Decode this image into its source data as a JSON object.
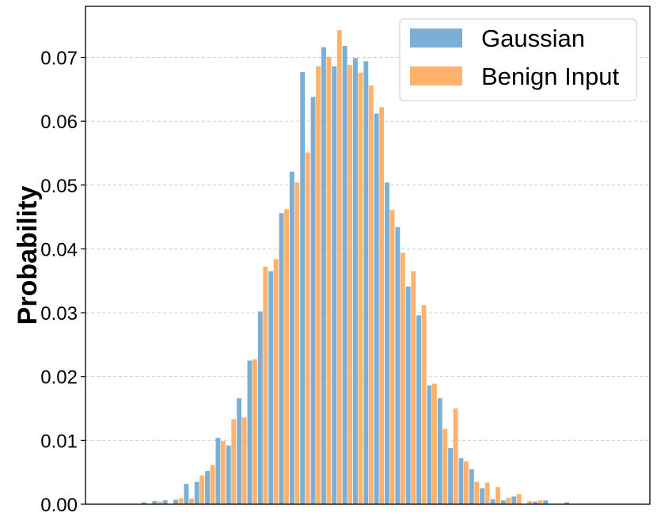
{
  "chart_data": {
    "type": "bar",
    "title": "",
    "xlabel": "",
    "ylabel": "Probability",
    "ylim": [
      0,
      0.078
    ],
    "yticks": [
      0.0,
      0.01,
      0.02,
      0.03,
      0.04,
      0.05,
      0.06,
      0.07
    ],
    "ytick_labels": [
      "0.00",
      "0.01",
      "0.02",
      "0.03",
      "0.04",
      "0.05",
      "0.06",
      "0.07"
    ],
    "grid": "horizontal dashed",
    "legend_position": "top-right",
    "series": [
      {
        "name": "Gaussian",
        "color": "#7BAFD4",
        "values": [
          0.0003,
          0.0005,
          0.0006,
          0.0007,
          0.0032,
          0.0035,
          0.0052,
          0.0104,
          0.0092,
          0.0166,
          0.0225,
          0.0302,
          0.0365,
          0.0456,
          0.0521,
          0.0677,
          0.0638,
          0.0716,
          0.0686,
          0.0718,
          0.0699,
          0.0694,
          0.0612,
          0.0504,
          0.0434,
          0.0341,
          0.0296,
          0.0186,
          0.0166,
          0.0088,
          0.0072,
          0.0055,
          0.0025,
          0.0008,
          0.0006,
          0.0012,
          0.0,
          0.0004,
          0.0006,
          0.0,
          0.0003
        ]
      },
      {
        "name": "Benign Input",
        "color": "#FFB26E",
        "values": [
          0.0,
          0.0004,
          0.0,
          0.0009,
          0.0009,
          0.0045,
          0.0061,
          0.0099,
          0.0133,
          0.0136,
          0.0227,
          0.0372,
          0.0384,
          0.0462,
          0.0504,
          0.0551,
          0.0686,
          0.0701,
          0.0743,
          0.0688,
          0.0676,
          0.0656,
          0.0622,
          0.0461,
          0.0394,
          0.0365,
          0.0312,
          0.0189,
          0.0118,
          0.015,
          0.0067,
          0.0035,
          0.0034,
          0.0027,
          0.001,
          0.0016,
          0.0005,
          0.0006,
          0.0,
          0.0,
          0.0
        ]
      }
    ]
  }
}
